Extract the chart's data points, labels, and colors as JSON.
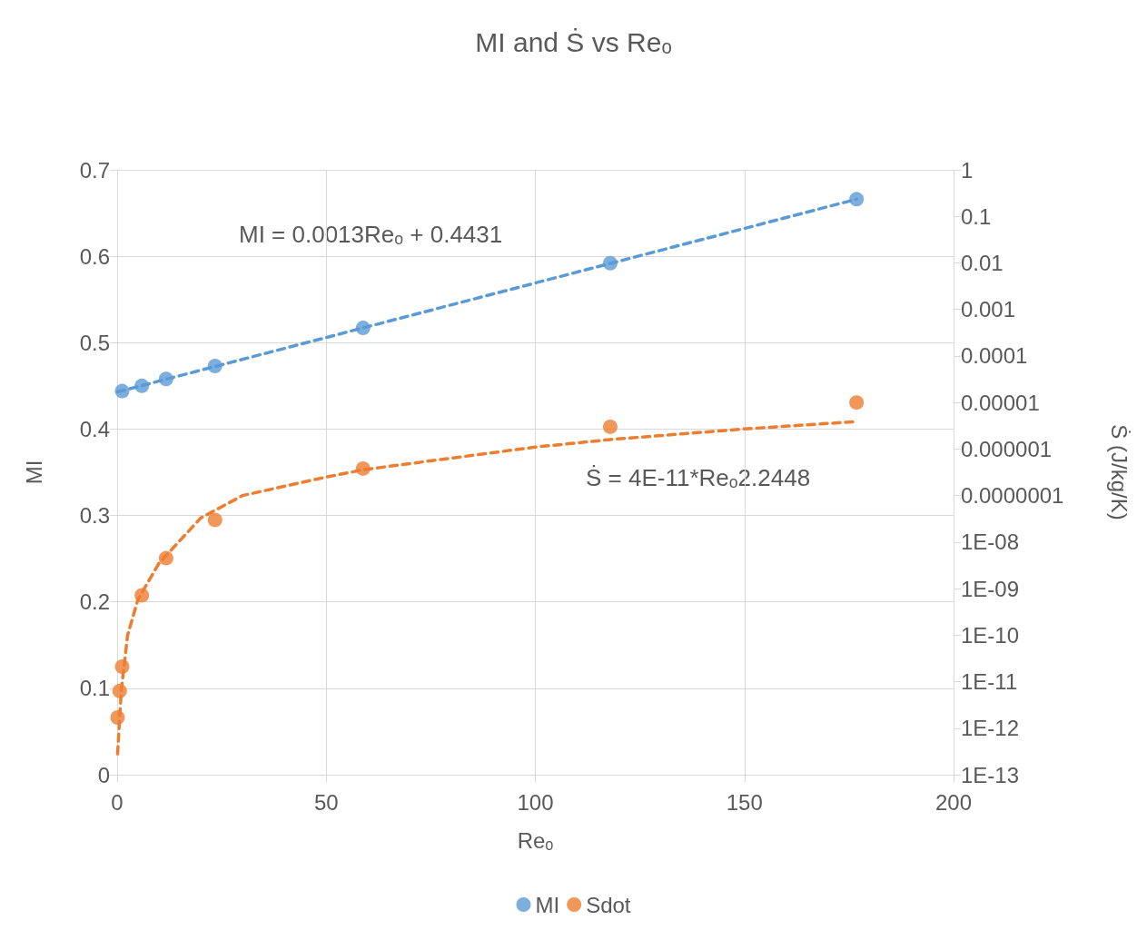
{
  "chart_data": {
    "type": "scatter",
    "title": "MI and Ṡ vs Reₒ",
    "xlabel": "Reₒ",
    "ylabel": "MI",
    "y2label": "Ṡ (J/kg/K)",
    "annotations": [
      "MI = 0.0013Reₒ + 0.4431",
      "Ṡ = 4E-11*Reₒ2.2448"
    ],
    "x": [
      0.1,
      0.6,
      1.2,
      5.9,
      11.7,
      23.4,
      58.8,
      117.9,
      176.8
    ],
    "series": [
      {
        "name": "MI",
        "color": "#5b9bd5",
        "values": [
          null,
          null,
          0.444,
          0.45,
          0.458,
          0.473,
          0.517,
          0.592,
          0.666
        ]
      },
      {
        "name": "Sdot",
        "color": "#ed7d31",
        "axis": "y2",
        "values": [
          1.7e-12,
          6.3e-12,
          2.1e-11,
          7.2e-10,
          4.5e-09,
          3e-08,
          3.8e-07,
          3e-06,
          1e-05
        ]
      },
      {
        "type": "line",
        "color": "#5b9bd5",
        "marker": "none",
        "line_style": "dashed",
        "x": [
          0.1,
          176.8
        ],
        "values": [
          0.443,
          0.666
        ]
      },
      {
        "type": "line",
        "color": "#ed7d31",
        "axis": "y2",
        "marker": "none",
        "line_style": "dashed",
        "x": [
          0.1,
          1,
          2.5,
          5,
          10,
          20,
          30,
          50,
          59,
          100,
          118,
          150,
          177
        ],
        "values": [
          2.8e-13,
          6.6e-12,
          1e-10,
          5.9e-10,
          3.5e-09,
          3.3e-08,
          1e-07,
          2.5e-07,
          3.6e-07,
          1.1e-06,
          1.6e-06,
          2.7e-06,
          3.9e-06
        ]
      }
    ],
    "marker": "circle",
    "grid": true,
    "legend": "bottom",
    "log": "y2",
    "xlim": [
      0,
      200
    ],
    "xticks": [
      0,
      50,
      100,
      150,
      200
    ],
    "ylim": [
      0,
      0.7
    ],
    "yticks": [
      0,
      0.1,
      0.2,
      0.3,
      0.4,
      0.5,
      0.6,
      0.7
    ],
    "y2lim": [
      1e-13,
      1
    ],
    "y2ticks": [
      {
        "value": 1e-13,
        "label": "1E-13"
      },
      {
        "value": 1e-12,
        "label": "1E-12"
      },
      {
        "value": 1e-11,
        "label": "1E-11"
      },
      {
        "value": 1e-10,
        "label": "1E-10"
      },
      {
        "value": 1e-09,
        "label": "1E-09"
      },
      {
        "value": 1e-08,
        "label": "1E-08"
      },
      {
        "value": 1e-07,
        "label": "0.0000001"
      },
      {
        "value": 1e-06,
        "label": "0.000001"
      },
      {
        "value": 1e-05,
        "label": "0.00001"
      },
      {
        "value": 0.0001,
        "label": "0.0001"
      },
      0.001,
      0.01,
      0.1,
      1
    ]
  }
}
